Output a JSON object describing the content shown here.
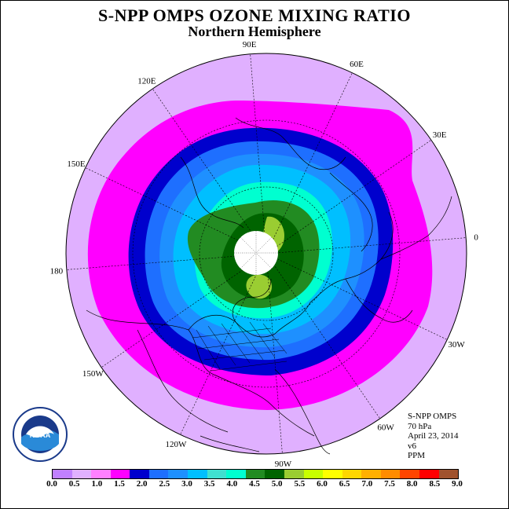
{
  "header": {
    "title": "S-NPP OMPS OZONE MIXING RATIO",
    "subtitle": "Northern Hemisphere"
  },
  "map": {
    "projection": "north polar stereographic",
    "longitude_labels": [
      {
        "text": "90E",
        "lon": 90
      },
      {
        "text": "60E",
        "lon": 60
      },
      {
        "text": "30E",
        "lon": 30
      },
      {
        "text": "0",
        "lon": 0
      },
      {
        "text": "30W",
        "lon": -30
      },
      {
        "text": "60W",
        "lon": -60
      },
      {
        "text": "90W",
        "lon": -90
      },
      {
        "text": "120W",
        "lon": -120
      },
      {
        "text": "150W",
        "lon": -150
      },
      {
        "text": "180",
        "lon": 180
      },
      {
        "text": "150E",
        "lon": 150
      },
      {
        "text": "120E",
        "lon": 120
      }
    ],
    "colors": {
      "outer_field": "#e0b0ff",
      "magenta_ring": "#ff00ff",
      "no_data_pole": "#ffffff"
    }
  },
  "info": {
    "line1": "S-NPP OMPS",
    "line2": "70 hPa",
    "line3": "April 23, 2014",
    "line4": "v6",
    "line5": "PPM"
  },
  "logo": {
    "text": "NOAA"
  },
  "colorbar": {
    "units": "PPM",
    "colors": [
      "#c080ff",
      "#e0b0ff",
      "#ff80ff",
      "#ff00ff",
      "#0000cd",
      "#1e6fff",
      "#1e90ff",
      "#00bfff",
      "#40e0d0",
      "#00ffd0",
      "#228b22",
      "#006400",
      "#9acd32",
      "#c8ff00",
      "#ffff00",
      "#ffd700",
      "#ffb000",
      "#ff8c00",
      "#ff4500",
      "#ff0000",
      "#a0522d"
    ],
    "ticks": [
      "0.0",
      "0.5",
      "1.0",
      "1.5",
      "2.0",
      "2.5",
      "3.0",
      "3.5",
      "4.0",
      "4.5",
      "5.0",
      "5.5",
      "6.0",
      "6.5",
      "7.0",
      "7.5",
      "8.0",
      "8.5",
      "9.0"
    ]
  }
}
